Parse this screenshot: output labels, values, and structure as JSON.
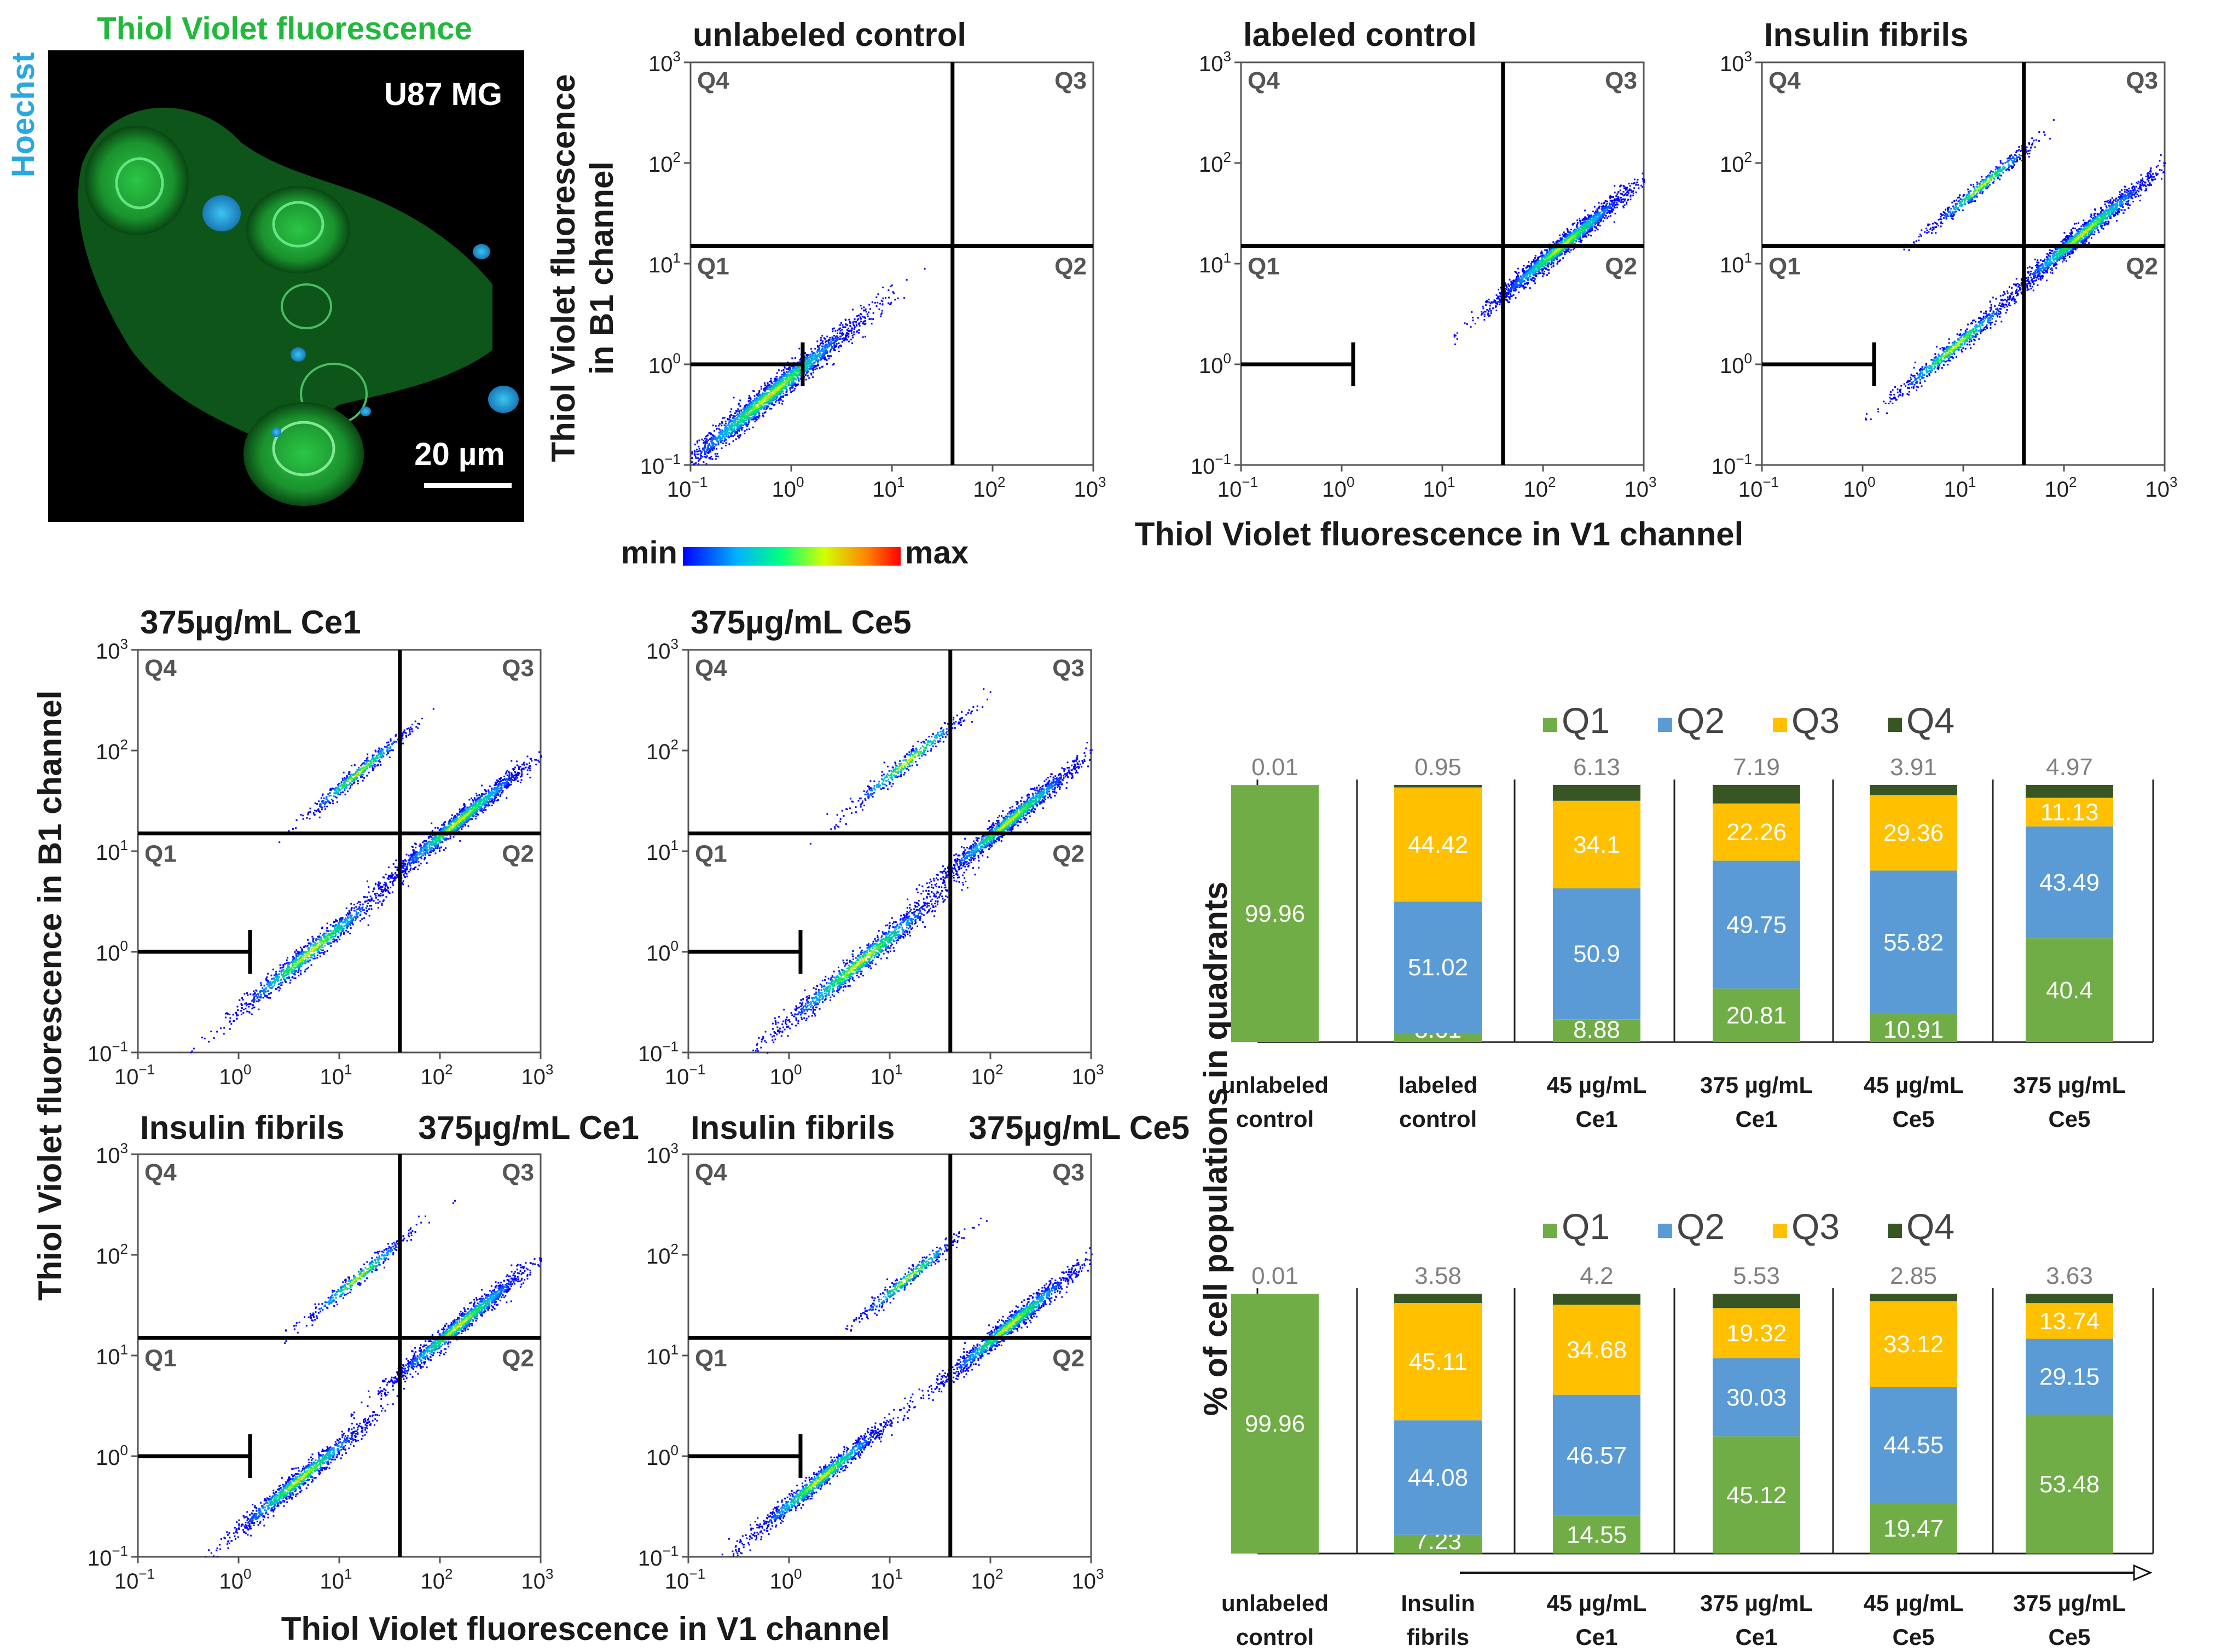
{
  "micrograph": {
    "title": "Thiol Violet fluorescence",
    "side_label": "Hoechst",
    "cell_line": "U87 MG",
    "scale_bar": "20 µm",
    "colors": {
      "green": "#22b83c",
      "blue": "#29a8e0"
    }
  },
  "axes": {
    "top_y_label_line1": "Thiol Violet fluorescence",
    "top_y_label_line2": "in B1 channel",
    "top_x_label": "Thiol Violet fluorescence in V1 channel",
    "bottom_y_label": "Thiol Violet fluorescence in B1 channel",
    "bottom_x_label": "Thiol Violet fluorescence in V1 channel",
    "tick_base": "10",
    "tick_exponents": [
      "−1",
      "0",
      "1",
      "2",
      "3"
    ]
  },
  "quadrant_labels": {
    "q1": "Q1",
    "q2": "Q2",
    "q3": "Q3",
    "q4": "Q4"
  },
  "colorbar": {
    "min": "min",
    "max": "max"
  },
  "bar_charts_text": {
    "y_label": "% of cell populations in quadrants",
    "legend": [
      "Q1",
      "Q2",
      "Q3",
      "Q4"
    ]
  },
  "chart_data": [
    {
      "type": "scatter",
      "title": "unlabeled control",
      "x_scale": "log",
      "y_scale": "log",
      "xlim": [
        0.1,
        1000
      ],
      "ylim": [
        0.1,
        1000
      ],
      "gate_x": 40,
      "gate_y": 15,
      "marker_y": 1,
      "marker_x_end": 1.3,
      "populations": [
        {
          "cx": 0.6,
          "cy": 0.5,
          "spread": 0.6,
          "n": 2200
        }
      ]
    },
    {
      "type": "scatter",
      "title": "labeled control",
      "x_scale": "log",
      "y_scale": "log",
      "xlim": [
        0.1,
        1000
      ],
      "ylim": [
        0.1,
        1000
      ],
      "gate_x": 40,
      "gate_y": 15,
      "marker_y": 1,
      "marker_x_end": 1.3,
      "populations": [
        {
          "cx": 150,
          "cy": 15,
          "spread": 0.45,
          "n": 1800
        }
      ]
    },
    {
      "type": "scatter",
      "title": "Insulin fibrils",
      "x_scale": "log",
      "y_scale": "log",
      "xlim": [
        0.1,
        1000
      ],
      "ylim": [
        0.1,
        1000
      ],
      "gate_x": 40,
      "gate_y": 15,
      "marker_y": 1,
      "marker_x_end": 1.3,
      "populations": [
        {
          "cx": 150,
          "cy": 20,
          "spread": 0.45,
          "n": 1500
        },
        {
          "cx": 8,
          "cy": 1.5,
          "spread": 0.4,
          "n": 700
        },
        {
          "cx": 15,
          "cy": 60,
          "spread": 0.35,
          "n": 500
        }
      ]
    },
    {
      "type": "scatter",
      "title": "375µg/mL Ce1",
      "x_scale": "log",
      "y_scale": "log",
      "xlim": [
        0.1,
        1000
      ],
      "ylim": [
        0.1,
        1000
      ],
      "gate_x": 40,
      "gate_y": 15,
      "marker_y": 1,
      "marker_x_end": 1.3,
      "populations": [
        {
          "cx": 150,
          "cy": 20,
          "spread": 0.45,
          "n": 1400
        },
        {
          "cx": 5,
          "cy": 1,
          "spread": 0.5,
          "n": 1000
        },
        {
          "cx": 15,
          "cy": 60,
          "spread": 0.35,
          "n": 500
        }
      ]
    },
    {
      "type": "scatter",
      "title": "375µg/mL Ce5",
      "x_scale": "log",
      "y_scale": "log",
      "xlim": [
        0.1,
        1000
      ],
      "ylim": [
        0.1,
        1000
      ],
      "gate_x": 40,
      "gate_y": 15,
      "marker_y": 1,
      "marker_x_end": 1.3,
      "populations": [
        {
          "cx": 150,
          "cy": 20,
          "spread": 0.45,
          "n": 1400
        },
        {
          "cx": 5,
          "cy": 0.8,
          "spread": 0.55,
          "n": 1200
        },
        {
          "cx": 15,
          "cy": 80,
          "spread": 0.4,
          "n": 400
        }
      ]
    },
    {
      "type": "scatter",
      "title_left": "Insulin fibrils",
      "title_right": "375µg/mL Ce1",
      "x_scale": "log",
      "y_scale": "log",
      "xlim": [
        0.1,
        1000
      ],
      "ylim": [
        0.1,
        1000
      ],
      "gate_x": 40,
      "gate_y": 15,
      "marker_y": 1,
      "marker_x_end": 1.3,
      "populations": [
        {
          "cx": 150,
          "cy": 20,
          "spread": 0.45,
          "n": 1300
        },
        {
          "cx": 4,
          "cy": 0.6,
          "spread": 0.45,
          "n": 1100
        },
        {
          "cx": 15,
          "cy": 60,
          "spread": 0.35,
          "n": 400
        }
      ]
    },
    {
      "type": "scatter",
      "title_left": "Insulin fibrils",
      "title_right": "375µg/mL Ce5",
      "x_scale": "log",
      "y_scale": "log",
      "xlim": [
        0.1,
        1000
      ],
      "ylim": [
        0.1,
        1000
      ],
      "gate_x": 40,
      "gate_y": 15,
      "marker_y": 1,
      "marker_x_end": 1.3,
      "populations": [
        {
          "cx": 150,
          "cy": 20,
          "spread": 0.45,
          "n": 1300
        },
        {
          "cx": 2,
          "cy": 0.6,
          "spread": 0.45,
          "n": 1100
        },
        {
          "cx": 15,
          "cy": 60,
          "spread": 0.35,
          "n": 400
        }
      ]
    },
    {
      "type": "bar",
      "stacked": true,
      "normalized_to": 100,
      "legend": [
        "Q1",
        "Q2",
        "Q3",
        "Q4"
      ],
      "categories": [
        [
          "unlabeled",
          "control"
        ],
        [
          "labeled",
          "control"
        ],
        [
          "45 µg/mL",
          "Ce1"
        ],
        [
          "375 µg/mL",
          "Ce1"
        ],
        [
          "45 µg/mL",
          "Ce5"
        ],
        [
          "375 µg/mL",
          "Ce5"
        ]
      ],
      "series": [
        {
          "name": "Q1",
          "values": [
            99.96,
            3.61,
            8.88,
            20.81,
            10.91,
            40.4
          ],
          "labels": [
            "99.96",
            "3.61",
            "8.88",
            "20.81",
            "10.91",
            "40.4"
          ]
        },
        {
          "name": "Q2",
          "values": [
            0.03,
            51.02,
            50.9,
            49.75,
            55.82,
            43.49
          ],
          "labels": [
            "",
            "51.02",
            "50.9",
            "49.75",
            "55.82",
            "43.49"
          ]
        },
        {
          "name": "Q3",
          "values": [
            0.0,
            44.42,
            34.1,
            22.26,
            29.36,
            11.13
          ],
          "labels": [
            "",
            "44.42",
            "34.1",
            "22.26",
            "29.36",
            "11.13"
          ]
        },
        {
          "name": "Q4",
          "values": [
            0.01,
            0.95,
            6.13,
            7.19,
            3.91,
            4.97
          ],
          "labels": [
            "0.01",
            "0.95",
            "6.13",
            "7.19",
            "3.91",
            "4.97"
          ]
        }
      ]
    },
    {
      "type": "bar",
      "stacked": true,
      "normalized_to": 100,
      "legend": [
        "Q1",
        "Q2",
        "Q3",
        "Q4"
      ],
      "categories": [
        [
          "unlabeled",
          "control"
        ],
        [
          "Insulin",
          "fibrils"
        ],
        [
          "45 µg/mL",
          "Ce1"
        ],
        [
          "375 µg/mL",
          "Ce1"
        ],
        [
          "45 µg/mL",
          "Ce5"
        ],
        [
          "375 µg/mL",
          "Ce5"
        ]
      ],
      "series": [
        {
          "name": "Q1",
          "values": [
            99.96,
            7.23,
            14.55,
            45.12,
            19.47,
            53.48
          ],
          "labels": [
            "99.96",
            "7.23",
            "14.55",
            "45.12",
            "19.47",
            "53.48"
          ]
        },
        {
          "name": "Q2",
          "values": [
            0.03,
            44.08,
            46.57,
            30.03,
            44.55,
            29.15
          ],
          "labels": [
            "",
            "44.08",
            "46.57",
            "30.03",
            "44.55",
            "29.15"
          ]
        },
        {
          "name": "Q3",
          "values": [
            0.0,
            45.11,
            34.68,
            19.32,
            33.12,
            13.74
          ],
          "labels": [
            "",
            "45.11",
            "34.68",
            "19.32",
            "33.12",
            "13.74"
          ]
        },
        {
          "name": "Q4",
          "values": [
            0.01,
            3.58,
            4.2,
            5.53,
            2.85,
            3.63
          ],
          "labels": [
            "0.01",
            "3.58",
            "4.2",
            "5.53",
            "2.85",
            "3.63"
          ]
        }
      ]
    }
  ],
  "colors": {
    "q1": "#70ad47",
    "q2": "#5b9bd5",
    "q3": "#ffc000",
    "q4": "#375623",
    "label_dark": "#555555",
    "top_label": "#7f7f7f"
  }
}
